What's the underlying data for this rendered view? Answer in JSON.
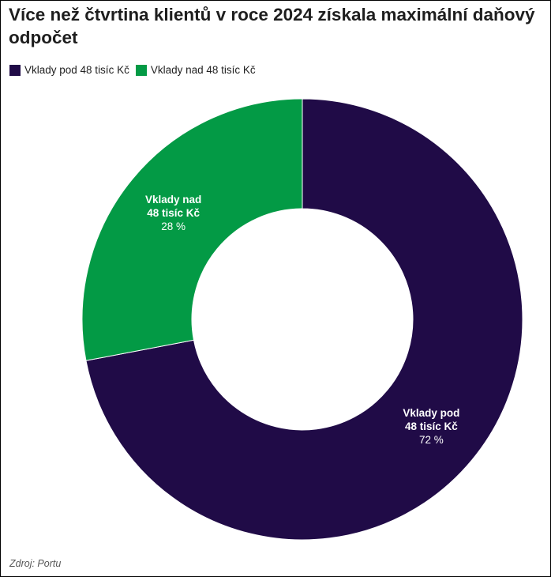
{
  "title": "Více než čtvrtina klientů v roce 2024 získala maximální daňový odpočet",
  "source": "Zdroj: Portu",
  "chart_data": {
    "type": "pie",
    "variant": "donut",
    "categories": [
      "Vklady pod 48 tisíc Kč",
      "Vklady nad 48 tisíc Kč"
    ],
    "values": [
      72,
      28
    ],
    "value_labels": [
      "72 %",
      "28 %"
    ],
    "slice_labels": [
      [
        "Vklady pod",
        "48 tisíc Kč"
      ],
      [
        "Vklady nad",
        "48 tisíc Kč"
      ]
    ],
    "colors": [
      "#200b47",
      "#039a45"
    ],
    "legend_position": "top-left"
  }
}
